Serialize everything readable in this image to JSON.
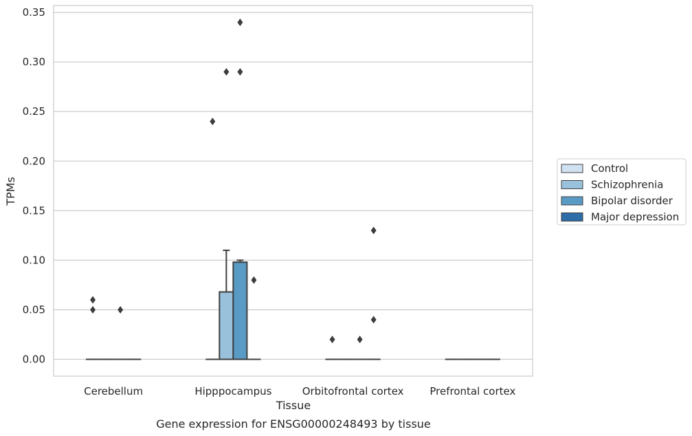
{
  "chart_data": {
    "type": "box",
    "title": "",
    "caption": "Gene expression for ENSG00000248493 by tissue",
    "xlabel": "Tissue",
    "ylabel": "TPMs",
    "ylim": [
      -0.017,
      0.357
    ],
    "yticks": [
      0.0,
      0.05,
      0.1,
      0.15,
      0.2,
      0.25,
      0.3,
      0.35
    ],
    "ytick_labels": [
      "0.00",
      "0.05",
      "0.10",
      "0.15",
      "0.20",
      "0.25",
      "0.30",
      "0.35"
    ],
    "grid": "horizontal",
    "legend_position": "right",
    "categories": [
      "Cerebellum",
      "Hipppocampus",
      "Orbitofrontal cortex",
      "Prefrontal cortex"
    ],
    "series": [
      {
        "name": "Control",
        "color": "#d0e1f2",
        "boxes": [
          {
            "q1": 0,
            "median": 0,
            "q3": 0,
            "whisker_low": 0,
            "whisker_high": 0,
            "outliers": [
              0.05,
              0.06
            ]
          },
          {
            "q1": 0,
            "median": 0,
            "q3": 0,
            "whisker_low": 0,
            "whisker_high": 0,
            "outliers": [
              0.24
            ]
          },
          {
            "q1": 0,
            "median": 0,
            "q3": 0,
            "whisker_low": 0,
            "whisker_high": 0,
            "outliers": [
              0.02
            ]
          },
          {
            "q1": 0,
            "median": 0,
            "q3": 0,
            "whisker_low": 0,
            "whisker_high": 0,
            "outliers": []
          }
        ]
      },
      {
        "name": "Schizophrenia",
        "color": "#9ac1dc",
        "boxes": [
          {
            "q1": 0,
            "median": 0,
            "q3": 0,
            "whisker_low": 0,
            "whisker_high": 0,
            "outliers": []
          },
          {
            "q1": 0,
            "median": 0,
            "q3": 0.068,
            "whisker_low": 0,
            "whisker_high": 0.11,
            "outliers": [
              0.29
            ]
          },
          {
            "q1": 0,
            "median": 0,
            "q3": 0,
            "whisker_low": 0,
            "whisker_high": 0,
            "outliers": []
          },
          {
            "q1": 0,
            "median": 0,
            "q3": 0,
            "whisker_low": 0,
            "whisker_high": 0,
            "outliers": []
          }
        ]
      },
      {
        "name": "Bipolar disorder",
        "color": "#5a9bc5",
        "boxes": [
          {
            "q1": 0,
            "median": 0,
            "q3": 0,
            "whisker_low": 0,
            "whisker_high": 0,
            "outliers": [
              0.05
            ]
          },
          {
            "q1": 0,
            "median": 0,
            "q3": 0.098,
            "whisker_low": 0,
            "whisker_high": 0.1,
            "outliers": [
              0.29,
              0.34
            ]
          },
          {
            "q1": 0,
            "median": 0,
            "q3": 0,
            "whisker_low": 0,
            "whisker_high": 0,
            "outliers": [
              0.02
            ]
          },
          {
            "q1": 0,
            "median": 0,
            "q3": 0,
            "whisker_low": 0,
            "whisker_high": 0,
            "outliers": []
          }
        ]
      },
      {
        "name": "Major depression",
        "color": "#2d6ea8",
        "boxes": [
          {
            "q1": 0,
            "median": 0,
            "q3": 0,
            "whisker_low": 0,
            "whisker_high": 0,
            "outliers": []
          },
          {
            "q1": 0,
            "median": 0,
            "q3": 0,
            "whisker_low": 0,
            "whisker_high": 0,
            "outliers": [
              0.08
            ]
          },
          {
            "q1": 0,
            "median": 0,
            "q3": 0,
            "whisker_low": 0,
            "whisker_high": 0,
            "outliers": [
              0.04,
              0.13
            ]
          },
          {
            "q1": 0,
            "median": 0,
            "q3": 0,
            "whisker_low": 0,
            "whisker_high": 0,
            "outliers": []
          }
        ]
      }
    ]
  }
}
